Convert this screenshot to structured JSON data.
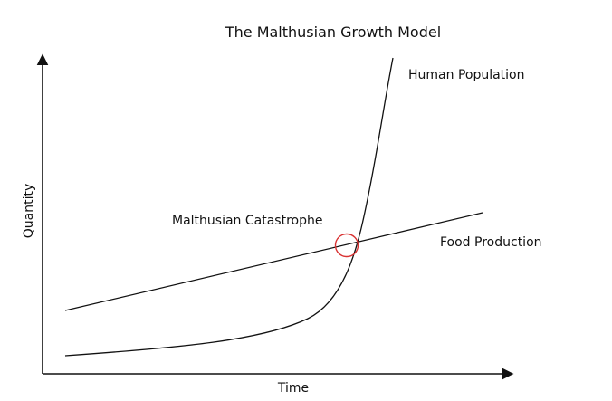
{
  "title": "The Malthusian Growth Model",
  "x_axis_label": "Time",
  "y_axis_label": "Quantity",
  "curves": {
    "population_label": "Human Population",
    "food_label": "Food Production"
  },
  "annotation": {
    "label": "Malthusian Catastrophe"
  },
  "colors": {
    "line": "#111111",
    "highlight": "#d93333"
  }
}
